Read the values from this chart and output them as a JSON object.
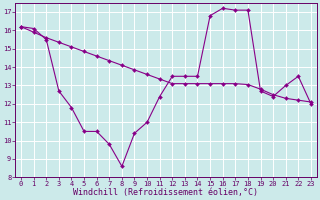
{
  "xlabel": "Windchill (Refroidissement éolien,°C)",
  "ylabel": "",
  "bg_color": "#cceaea",
  "line1_color": "#880088",
  "line2_color": "#880088",
  "grid_color": "#ffffff",
  "x_values": [
    0,
    1,
    2,
    3,
    4,
    5,
    6,
    7,
    8,
    9,
    10,
    11,
    12,
    13,
    14,
    15,
    16,
    17,
    18,
    19,
    20,
    21,
    22,
    23
  ],
  "y_main": [
    16.2,
    16.1,
    15.5,
    12.7,
    11.8,
    10.5,
    10.5,
    9.8,
    8.6,
    10.4,
    11.0,
    12.4,
    13.5,
    13.5,
    13.5,
    16.8,
    17.2,
    17.1,
    17.1,
    12.7,
    12.4,
    13.0,
    13.5,
    12.0
  ],
  "y_trend": [
    16.2,
    15.9,
    15.6,
    15.35,
    15.1,
    14.85,
    14.6,
    14.35,
    14.1,
    13.85,
    13.6,
    13.35,
    13.1,
    13.1,
    13.1,
    13.1,
    13.1,
    13.1,
    13.05,
    12.8,
    12.5,
    12.3,
    12.2,
    12.1
  ],
  "ylim": [
    8,
    17.5
  ],
  "yticks": [
    8,
    9,
    10,
    11,
    12,
    13,
    14,
    15,
    16,
    17
  ],
  "xticks": [
    0,
    1,
    2,
    3,
    4,
    5,
    6,
    7,
    8,
    9,
    10,
    11,
    12,
    13,
    14,
    15,
    16,
    17,
    18,
    19,
    20,
    21,
    22,
    23
  ],
  "marker": "D",
  "markersize": 2.0,
  "linewidth": 0.8,
  "font_color": "#660066",
  "tick_font_size": 5.0,
  "xlabel_font_size": 6.0
}
